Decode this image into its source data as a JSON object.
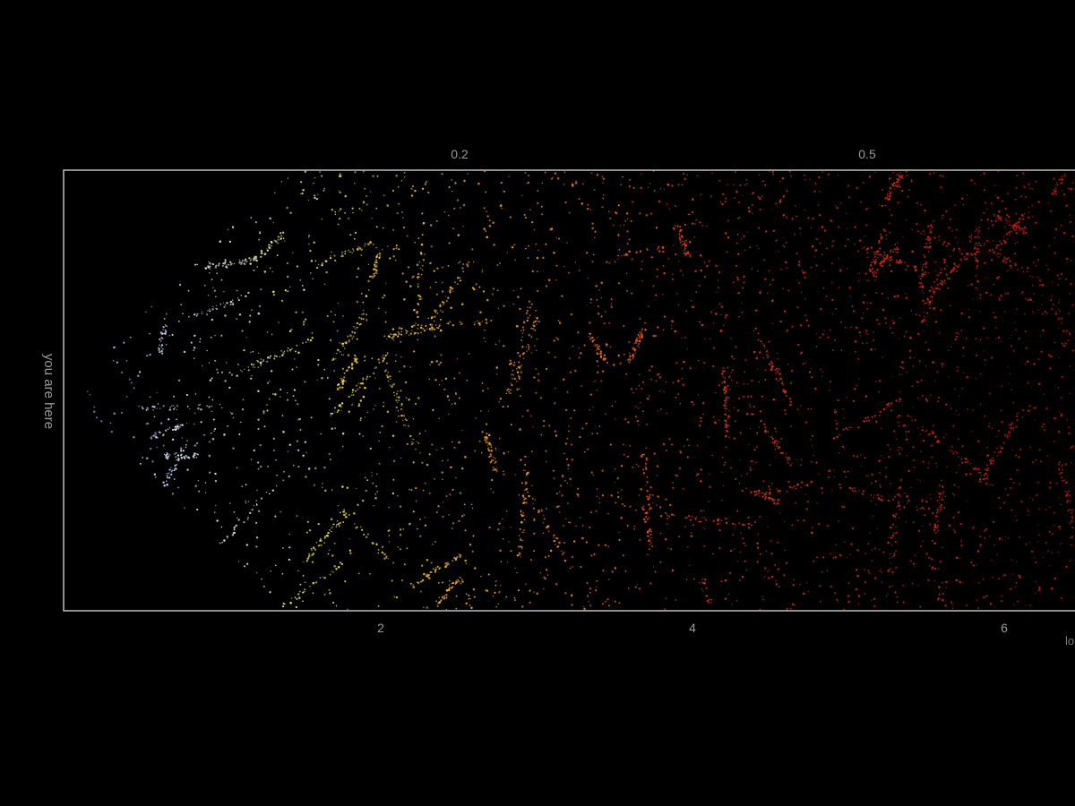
{
  "chart_data": {
    "type": "scatter",
    "title": "",
    "observer_label": "you are here",
    "bottom_axis": {
      "ticks": [
        2,
        4,
        6
      ],
      "tick_labels": [
        "2",
        "4",
        "6"
      ],
      "unit_label": "lo"
    },
    "top_axis": {
      "ticks": [
        0.2,
        0.5
      ],
      "tick_labels": [
        "0.2",
        "0.5"
      ]
    },
    "xlim": [
      0,
      6.5
    ],
    "grid": false,
    "legend": "none",
    "color_ramp": [
      "#6fa8e8",
      "#d9e6f5",
      "#f2e25a",
      "#f0a030",
      "#e0401c",
      "#b8180e"
    ],
    "background": "#000000",
    "frame_color": "#bdbdbd"
  }
}
